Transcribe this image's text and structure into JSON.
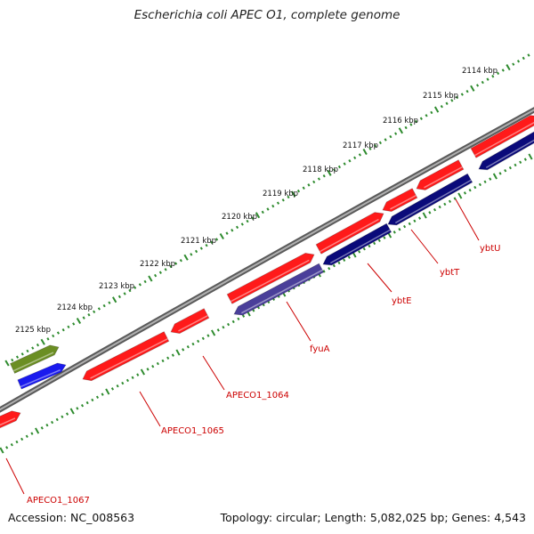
{
  "title": "Escherichia coli APEC O1, complete genome",
  "accession": "Accession: NC_008563",
  "summary": "Topology: circular; Length: 5,082,025 bp; Genes: 4,543",
  "colors": {
    "backbone": "#8a8a8a",
    "ticks": "#2e8b2e",
    "forward_cds": "#ff1a1a",
    "reverse_cds": "#0a0a7a",
    "reverse_cds_light": "#4a3f9a",
    "olive_feature": "#6b8e23",
    "blue_feature": "#1a1aee",
    "gene_label": "#cc0000"
  },
  "scale_labels": [
    "2114 kbp",
    "2115 kbp",
    "2116 kbp",
    "2117 kbp",
    "2118 kbp",
    "2119 kbp",
    "2120 kbp",
    "2121 kbp",
    "2122 kbp",
    "2123 kbp",
    "2124 kbp",
    "2125 kbp"
  ],
  "gene_labels": [
    "ybtU",
    "ybtT",
    "ybtE",
    "fyuA",
    "APECO1_1064",
    "APECO1_1065",
    "APECO1_1067"
  ]
}
